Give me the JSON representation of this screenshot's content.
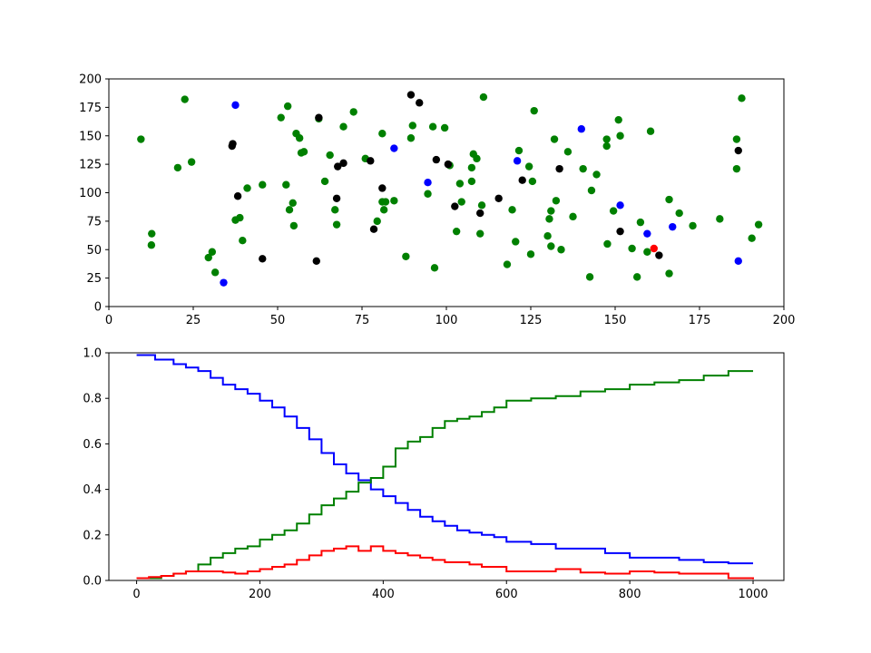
{
  "chart_data": [
    {
      "type": "scatter",
      "title": "",
      "xlabel": "",
      "ylabel": "",
      "xlim": [
        0,
        200
      ],
      "ylim": [
        0,
        200
      ],
      "xticks": [
        0,
        25,
        50,
        75,
        100,
        125,
        150,
        175,
        200
      ],
      "yticks": [
        0,
        25,
        50,
        75,
        100,
        125,
        150,
        175,
        200
      ],
      "grid": false,
      "series": [
        {
          "color": "#008000",
          "points": [
            [
              9.5,
              147
            ],
            [
              12.7,
              64
            ],
            [
              12.6,
              54
            ],
            [
              20.4,
              122
            ],
            [
              22.5,
              182
            ],
            [
              24.5,
              127
            ],
            [
              29.5,
              43
            ],
            [
              30.6,
              48
            ],
            [
              31.5,
              30
            ],
            [
              37.5,
              76
            ],
            [
              38.8,
              78
            ],
            [
              39.6,
              58
            ],
            [
              41,
              104
            ],
            [
              45.5,
              107
            ],
            [
              51,
              166
            ],
            [
              52.5,
              107
            ],
            [
              53,
              176
            ],
            [
              53.5,
              85
            ],
            [
              54.5,
              91
            ],
            [
              54.8,
              71
            ],
            [
              55.5,
              152
            ],
            [
              56.5,
              148
            ],
            [
              57,
              135
            ],
            [
              57.8,
              136
            ],
            [
              62.2,
              165
            ],
            [
              64,
              110
            ],
            [
              65.5,
              133
            ],
            [
              67,
              85
            ],
            [
              67.5,
              72
            ],
            [
              69.5,
              158
            ],
            [
              72.5,
              171
            ],
            [
              76,
              130
            ],
            [
              79.5,
              75
            ],
            [
              81,
              152
            ],
            [
              81,
              92
            ],
            [
              81.5,
              85
            ],
            [
              82,
              92
            ],
            [
              84.5,
              93
            ],
            [
              88,
              44
            ],
            [
              89.5,
              148
            ],
            [
              90,
              159
            ],
            [
              94.5,
              99
            ],
            [
              96,
              158
            ],
            [
              96.5,
              34
            ],
            [
              99.5,
              157
            ],
            [
              101,
              124
            ],
            [
              103,
              66
            ],
            [
              104,
              108
            ],
            [
              104.5,
              92
            ],
            [
              107.5,
              110
            ],
            [
              107.5,
              122
            ],
            [
              108,
              134
            ],
            [
              109,
              130
            ],
            [
              110,
              64
            ],
            [
              110.5,
              89
            ],
            [
              111,
              184
            ],
            [
              118,
              37
            ],
            [
              119.5,
              85
            ],
            [
              120.5,
              57
            ],
            [
              121.5,
              137
            ],
            [
              124.5,
              123
            ],
            [
              125,
              46
            ],
            [
              125.5,
              110
            ],
            [
              126,
              172
            ],
            [
              130,
              62
            ],
            [
              130.5,
              77
            ],
            [
              131,
              84
            ],
            [
              131,
              53
            ],
            [
              132,
              147
            ],
            [
              132.5,
              93
            ],
            [
              134,
              50
            ],
            [
              136,
              136
            ],
            [
              137.5,
              79
            ],
            [
              140.5,
              121
            ],
            [
              142.5,
              26
            ],
            [
              143,
              102
            ],
            [
              144.5,
              116
            ],
            [
              147.5,
              141
            ],
            [
              147.5,
              147
            ],
            [
              147.7,
              55
            ],
            [
              149.5,
              84
            ],
            [
              151,
              164
            ],
            [
              151.5,
              150
            ],
            [
              155,
              51
            ],
            [
              156.5,
              26
            ],
            [
              157.5,
              74
            ],
            [
              159.5,
              48
            ],
            [
              160.5,
              154
            ],
            [
              166,
              94
            ],
            [
              166,
              29
            ],
            [
              169,
              82
            ],
            [
              173,
              71
            ],
            [
              181,
              77
            ],
            [
              186,
              147
            ],
            [
              186,
              121
            ],
            [
              187.5,
              183
            ],
            [
              190.5,
              60
            ],
            [
              192.5,
              72
            ]
          ]
        },
        {
          "color": "#000000",
          "points": [
            [
              36.5,
              141
            ],
            [
              36.7,
              143
            ],
            [
              38.2,
              97
            ],
            [
              45.5,
              42
            ],
            [
              61.5,
              40
            ],
            [
              62.2,
              166
            ],
            [
              67.5,
              95
            ],
            [
              67.8,
              123
            ],
            [
              69.5,
              126
            ],
            [
              77.5,
              128
            ],
            [
              78.5,
              68
            ],
            [
              81,
              104
            ],
            [
              89.5,
              186
            ],
            [
              92,
              179
            ],
            [
              97,
              129
            ],
            [
              100.5,
              125
            ],
            [
              102.5,
              88
            ],
            [
              110,
              82
            ],
            [
              115.5,
              95
            ],
            [
              122.5,
              111
            ],
            [
              133.5,
              121
            ],
            [
              151.5,
              66
            ],
            [
              163,
              45
            ],
            [
              186.5,
              137
            ]
          ]
        },
        {
          "color": "#0000ff",
          "points": [
            [
              34,
              21
            ],
            [
              37.5,
              177
            ],
            [
              84.5,
              139
            ],
            [
              94.5,
              109
            ],
            [
              121,
              128
            ],
            [
              140,
              156
            ],
            [
              151.5,
              89
            ],
            [
              159.5,
              64
            ],
            [
              167,
              70
            ],
            [
              186.5,
              40
            ]
          ]
        },
        {
          "color": "#ff0000",
          "points": [
            [
              161.5,
              51
            ]
          ]
        }
      ]
    },
    {
      "type": "line",
      "title": "",
      "xlabel": "",
      "ylabel": "",
      "xlim": [
        -45,
        1050
      ],
      "ylim": [
        0,
        1.0
      ],
      "xticks": [
        0,
        200,
        400,
        600,
        800,
        1000
      ],
      "yticks": [
        0.0,
        0.2,
        0.4,
        0.6,
        0.8,
        1.0
      ],
      "ytick_labels": [
        "0.0",
        "0.2",
        "0.4",
        "0.6",
        "0.8",
        "1.0"
      ],
      "grid": false,
      "series": [
        {
          "color": "#0000ff",
          "points": [
            [
              0,
              0.99
            ],
            [
              20,
              0.99
            ],
            [
              30,
              0.97
            ],
            [
              60,
              0.95
            ],
            [
              80,
              0.935
            ],
            [
              100,
              0.92
            ],
            [
              120,
              0.89
            ],
            [
              140,
              0.86
            ],
            [
              160,
              0.84
            ],
            [
              180,
              0.82
            ],
            [
              200,
              0.79
            ],
            [
              220,
              0.76
            ],
            [
              240,
              0.72
            ],
            [
              260,
              0.67
            ],
            [
              280,
              0.62
            ],
            [
              300,
              0.56
            ],
            [
              320,
              0.51
            ],
            [
              340,
              0.47
            ],
            [
              360,
              0.44
            ],
            [
              380,
              0.4
            ],
            [
              400,
              0.37
            ],
            [
              420,
              0.34
            ],
            [
              440,
              0.31
            ],
            [
              460,
              0.28
            ],
            [
              480,
              0.26
            ],
            [
              500,
              0.24
            ],
            [
              520,
              0.22
            ],
            [
              540,
              0.21
            ],
            [
              560,
              0.2
            ],
            [
              580,
              0.19
            ],
            [
              600,
              0.17
            ],
            [
              640,
              0.16
            ],
            [
              680,
              0.14
            ],
            [
              720,
              0.14
            ],
            [
              760,
              0.12
            ],
            [
              800,
              0.1
            ],
            [
              840,
              0.1
            ],
            [
              880,
              0.09
            ],
            [
              920,
              0.08
            ],
            [
              960,
              0.075
            ],
            [
              1000,
              0.075
            ]
          ]
        },
        {
          "color": "#008000",
          "points": [
            [
              0,
              0.01
            ],
            [
              20,
              0.01
            ],
            [
              40,
              0.02
            ],
            [
              60,
              0.03
            ],
            [
              80,
              0.04
            ],
            [
              100,
              0.07
            ],
            [
              120,
              0.1
            ],
            [
              140,
              0.12
            ],
            [
              160,
              0.14
            ],
            [
              180,
              0.15
            ],
            [
              200,
              0.18
            ],
            [
              220,
              0.2
            ],
            [
              240,
              0.22
            ],
            [
              260,
              0.25
            ],
            [
              280,
              0.29
            ],
            [
              300,
              0.33
            ],
            [
              320,
              0.36
            ],
            [
              340,
              0.39
            ],
            [
              360,
              0.43
            ],
            [
              380,
              0.45
            ],
            [
              400,
              0.5
            ],
            [
              420,
              0.58
            ],
            [
              440,
              0.61
            ],
            [
              460,
              0.63
            ],
            [
              480,
              0.67
            ],
            [
              500,
              0.7
            ],
            [
              520,
              0.71
            ],
            [
              540,
              0.72
            ],
            [
              560,
              0.74
            ],
            [
              580,
              0.76
            ],
            [
              600,
              0.79
            ],
            [
              640,
              0.8
            ],
            [
              680,
              0.81
            ],
            [
              720,
              0.83
            ],
            [
              760,
              0.84
            ],
            [
              800,
              0.86
            ],
            [
              840,
              0.87
            ],
            [
              880,
              0.88
            ],
            [
              920,
              0.9
            ],
            [
              960,
              0.92
            ],
            [
              1000,
              0.92
            ]
          ]
        },
        {
          "color": "#ff0000",
          "points": [
            [
              0,
              0.01
            ],
            [
              20,
              0.015
            ],
            [
              40,
              0.02
            ],
            [
              60,
              0.03
            ],
            [
              80,
              0.04
            ],
            [
              100,
              0.04
            ],
            [
              120,
              0.04
            ],
            [
              140,
              0.035
            ],
            [
              160,
              0.03
            ],
            [
              180,
              0.04
            ],
            [
              200,
              0.05
            ],
            [
              220,
              0.06
            ],
            [
              240,
              0.07
            ],
            [
              260,
              0.09
            ],
            [
              280,
              0.11
            ],
            [
              300,
              0.13
            ],
            [
              320,
              0.14
            ],
            [
              340,
              0.15
            ],
            [
              360,
              0.13
            ],
            [
              380,
              0.15
            ],
            [
              400,
              0.13
            ],
            [
              420,
              0.12
            ],
            [
              440,
              0.11
            ],
            [
              460,
              0.1
            ],
            [
              480,
              0.09
            ],
            [
              500,
              0.08
            ],
            [
              540,
              0.07
            ],
            [
              560,
              0.06
            ],
            [
              600,
              0.04
            ],
            [
              640,
              0.04
            ],
            [
              680,
              0.05
            ],
            [
              720,
              0.035
            ],
            [
              760,
              0.03
            ],
            [
              800,
              0.04
            ],
            [
              840,
              0.035
            ],
            [
              880,
              0.03
            ],
            [
              920,
              0.03
            ],
            [
              960,
              0.01
            ],
            [
              1000,
              0.005
            ]
          ]
        }
      ]
    }
  ]
}
